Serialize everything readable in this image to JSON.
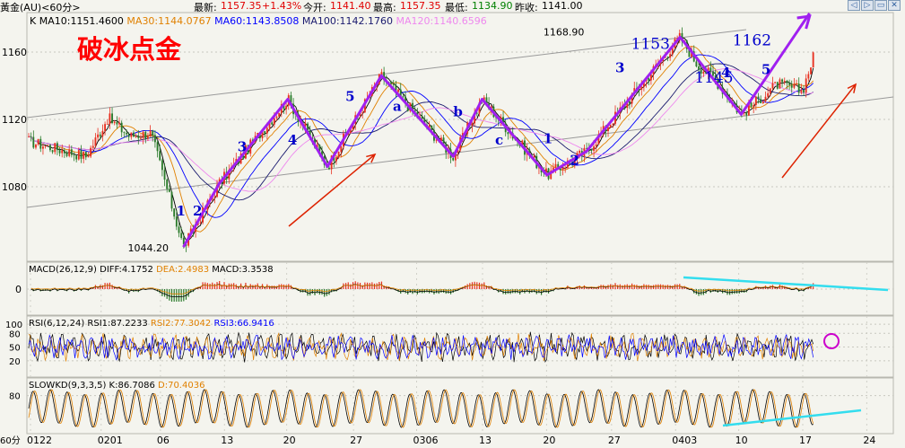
{
  "header": {
    "symbol": "黃金(AU)<60分>",
    "latest_label": "最新:",
    "latest_value": "1157.35",
    "change": "+1.43%",
    "open_label": "今开:",
    "open_value": "1141.40",
    "high_label": "最高:",
    "high_value": "1157.35",
    "low_label": "最低:",
    "low_value": "1134.90",
    "prev_close_label": "昨收:",
    "prev_close_value": "1141.00"
  },
  "window_buttons": [
    "◁",
    "▷",
    "▭",
    "✕"
  ],
  "colors": {
    "background": "#f4f4ee",
    "title_red": "#ff0000",
    "wave_purple": "#a020f0",
    "trend_gray": "#9a9a9a",
    "cyan_trend": "#33ddee",
    "arrow_red": "#dd2200",
    "label_blue": "#0000cc",
    "ma10": "#000000",
    "ma30": "#e08000",
    "ma60": "#0000ff",
    "ma100": "#1a1a6e",
    "ma120": "#ee88ee",
    "candle_up": "#e83020",
    "candle_down": "#2a7a2a",
    "rsi1": "#000000",
    "rsi2": "#e08000",
    "rsi3": "#0000ff",
    "kd_k": "#000000",
    "kd_d": "#e08000",
    "macd_diff": "#000000",
    "macd_dea": "#e08000"
  },
  "chart_data": [
    {
      "type": "candlestick",
      "title": "破冰点金",
      "indicator_prefix": "K",
      "legend": [
        {
          "name": "MA10",
          "value": "1151.4600"
        },
        {
          "name": "MA30",
          "value": "1144.0767"
        },
        {
          "name": "MA60",
          "value": "1143.8508"
        },
        {
          "name": "MA100",
          "value": "1142.1760"
        },
        {
          "name": "MA120",
          "value": "1140.6596"
        }
      ],
      "y_ticks": [
        1160,
        1120,
        1080
      ],
      "ylim": [
        1040,
        1178
      ],
      "x_ticks": [
        "0122",
        "0201",
        "06",
        "13",
        "20",
        "27",
        "0306",
        "13",
        "20",
        "27",
        "0403",
        "10",
        "17",
        "24"
      ],
      "x_axis_unit": "60分",
      "key_prices": [
        {
          "label": "1044.20",
          "t": 0.215,
          "price": 1044.2
        },
        {
          "label": "1168.90",
          "t": 0.775,
          "price": 1168.9
        }
      ],
      "annotations": [
        {
          "text": "1",
          "t": 0.205,
          "price": 1063
        },
        {
          "text": "2",
          "t": 0.228,
          "price": 1063
        },
        {
          "text": "3",
          "t": 0.29,
          "price": 1101
        },
        {
          "text": "4",
          "t": 0.36,
          "price": 1105
        },
        {
          "text": "5",
          "t": 0.44,
          "price": 1131
        },
        {
          "text": "a",
          "t": 0.506,
          "price": 1125
        },
        {
          "text": "b",
          "t": 0.59,
          "price": 1122
        },
        {
          "text": "c",
          "t": 0.648,
          "price": 1105
        },
        {
          "text": "1",
          "t": 0.715,
          "price": 1106
        },
        {
          "text": "2",
          "t": 0.752,
          "price": 1093
        },
        {
          "text": "3",
          "t": 0.815,
          "price": 1148
        },
        {
          "text": "1153",
          "t": 0.837,
          "price": 1162
        },
        {
          "text": "1162",
          "t": 0.978,
          "price": 1164
        },
        {
          "text": "1145",
          "t": 0.925,
          "price": 1142
        },
        {
          "text": "4",
          "t": 0.962,
          "price": 1145
        },
        {
          "text": "5",
          "t": 1.018,
          "price": 1147
        }
      ],
      "wave_path": [
        {
          "t": 0.215,
          "price": 1044.2
        },
        {
          "t": 0.265,
          "price": 1082
        },
        {
          "t": 0.36,
          "price": 1132
        },
        {
          "t": 0.415,
          "price": 1092
        },
        {
          "t": 0.49,
          "price": 1146
        },
        {
          "t": 0.59,
          "price": 1098
        },
        {
          "t": 0.63,
          "price": 1132
        },
        {
          "t": 0.72,
          "price": 1087
        },
        {
          "t": 0.775,
          "price": 1101
        },
        {
          "t": 0.905,
          "price": 1168.9
        },
        {
          "t": 0.99,
          "price": 1123
        },
        {
          "t": 1.085,
          "price": 1183
        }
      ]
    },
    {
      "type": "line",
      "title": "MACD",
      "label": "MACD(26,12,9)",
      "values": [
        {
          "name": "DIFF",
          "value": "4.1752"
        },
        {
          "name": "DEA",
          "value": "2.4983"
        },
        {
          "name": "MACD",
          "value": "3.3538"
        }
      ],
      "y_ticks": [
        0
      ]
    },
    {
      "type": "line",
      "title": "RSI",
      "label": "RSI(6,12,24)",
      "values": [
        {
          "name": "RSI1",
          "value": "87.2233"
        },
        {
          "name": "RSI2",
          "value": "77.3042"
        },
        {
          "name": "RSI3",
          "value": "66.9416"
        }
      ],
      "y_ticks": [
        100,
        80,
        50,
        20
      ],
      "ylim": [
        0,
        110
      ]
    },
    {
      "type": "line",
      "title": "SLOWKD",
      "label": "SLOWKD(9,3,3,5)",
      "values": [
        {
          "name": "K",
          "value": "86.7086"
        },
        {
          "name": "D",
          "value": "70.4036"
        }
      ],
      "y_ticks": [
        80
      ],
      "ylim": [
        0,
        100
      ]
    }
  ]
}
